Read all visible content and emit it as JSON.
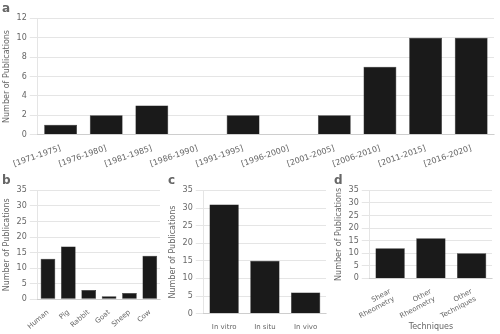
{
  "chart_data": [
    {
      "type": "bar",
      "title": "a",
      "categories": [
        "[1971-1975]",
        "[1976-1980]",
        "[1981-1985]",
        "[1986-1990]",
        "[1991-1995]",
        "[1996-2000]",
        "[2001-2005]",
        "[2006-2010]",
        "[2011-2015]",
        "[2016-2020]"
      ],
      "values": [
        1,
        2,
        3,
        0,
        2,
        0,
        2,
        7,
        10,
        10
      ],
      "color": "#1a1a1a",
      "ylabel": "Number of Publications",
      "ylim": [
        0,
        12
      ],
      "yticks": [
        0,
        2,
        4,
        6,
        8,
        10,
        12
      ],
      "grid": true
    },
    {
      "type": "bar",
      "title": "b",
      "categories": [
        "Human",
        "Pig",
        "Rabbit",
        "Goat",
        "Sheep",
        "Cow"
      ],
      "values": [
        13,
        17,
        3,
        1,
        2,
        14
      ],
      "color": "#1a1a1a",
      "ylabel": "Number of Publications",
      "ylim": [
        0,
        35
      ],
      "yticks": [
        0,
        5,
        10,
        15,
        20,
        25,
        30,
        35
      ],
      "grid": true
    },
    {
      "type": "bar",
      "title": "c",
      "categories": [
        "In vitro",
        "In situ",
        "In vivo"
      ],
      "values": [
        31,
        15,
        6
      ],
      "color": "#1a1a1a",
      "ylabel": "Number of Publications",
      "ylim": [
        0,
        35
      ],
      "yticks": [
        0,
        5,
        10,
        15,
        20,
        25,
        30,
        35
      ],
      "grid": true
    },
    {
      "type": "bar",
      "title": "d",
      "categories": [
        "Shear\nRheometry",
        "Other\nRheometry",
        "Other\nTechniques"
      ],
      "values": [
        12,
        16,
        10
      ],
      "color": "#1a1a1a",
      "ylabel": "Number of Publications",
      "xlabel": "Techniques",
      "ylim": [
        0,
        35
      ],
      "yticks": [
        0,
        5,
        10,
        15,
        20,
        25,
        30,
        35
      ],
      "grid": true
    }
  ]
}
